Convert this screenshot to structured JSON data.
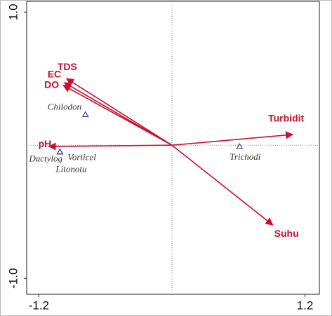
{
  "chart_data": {
    "type": "biplot",
    "xlim": [
      -1.31,
      1.33
    ],
    "ylim": [
      -1.12,
      1.08
    ],
    "xticks": [
      -1.2,
      1.2
    ],
    "yticks": [
      {
        "value": 1.0,
        "label": "1.0"
      },
      {
        "value": -1.0,
        "label": "-1.0"
      }
    ],
    "arrow_color": "#c8102e",
    "point_color": "#2b2b8c",
    "arrows": [
      {
        "name": "TDS",
        "x": -0.95,
        "y": 0.5
      },
      {
        "name": "EC",
        "x": -0.97,
        "y": 0.47
      },
      {
        "name": "DO",
        "x": -0.98,
        "y": 0.45
      },
      {
        "name": "pH",
        "x": -1.11,
        "y": -0.01
      },
      {
        "name": "Turbidit",
        "x": 1.09,
        "y": 0.08
      },
      {
        "name": "Suhu",
        "x": 0.91,
        "y": -0.6
      }
    ],
    "points": [
      {
        "name": "Chilodon",
        "x": -0.78,
        "y": 0.23
      },
      {
        "name": "Dactylog",
        "x": -1.01,
        "y": -0.05
      },
      {
        "name": "Vorticel",
        "x": -1.01,
        "y": -0.05
      },
      {
        "name": "Litonotu",
        "x": -1.01,
        "y": -0.05
      },
      {
        "name": "Trichodi",
        "x": 0.61,
        "y": -0.01
      }
    ]
  }
}
